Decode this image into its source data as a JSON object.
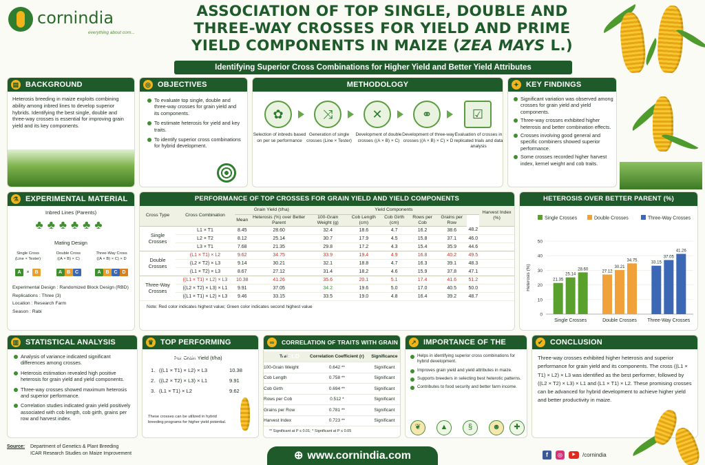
{
  "brand": {
    "name": "cornindia",
    "tagline": "everything about corn..."
  },
  "title": {
    "line1": "ASSOCIATION OF TOP SINGLE, DOUBLE AND",
    "line2": "THREE-WAY CROSSES FOR YIELD AND PRIME",
    "line3a": "YIELD COMPONENTS IN MAIZE (",
    "line3i": "ZEA MAYS",
    "line3b": " L.)"
  },
  "subtitle": "Identifying Superior Cross Combinations for Higher Yield and Better Yield Attributes",
  "background": {
    "heading": "BACKGROUND",
    "text": "Heterosis breeding in maize exploits combining ability among inbred lines to develop superior hybrids. Identifying the best single, double and three-way crosses is essential for improving grain yield and its key components."
  },
  "objectives": {
    "heading": "OBJECTIVES",
    "items": [
      "To evaluate top single, double and three-way crosses for grain yield and its components.",
      "To estimate heterosis for yield and key traits.",
      "To identify superior cross combinations for hybrid development."
    ]
  },
  "methodology": {
    "heading": "METHODOLOGY",
    "steps": [
      "Selection of inbreds based on per se performance",
      "Generation of single crosses (Line × Tester)",
      "Development of double crosses ((A × B) × C)",
      "Development of three-way crosses ((A × B) × C) × D",
      "Evaluation of crosses in replicated trials and data analysis"
    ]
  },
  "key_findings": {
    "heading": "KEY FINDINGS",
    "items": [
      "Significant variation was observed among crosses for grain yield and yield components.",
      "Three-way crosses exhibited higher heterosis and better combination effects.",
      "Crosses involving good general and specific combiners showed superior performance.",
      "Some crosses recorded higher harvest index, kernel weight and cob traits."
    ]
  },
  "material": {
    "heading": "EXPERIMENTAL MATERIAL",
    "inbred_label": "Inbred Lines (Parents)",
    "mating_label": "Mating Design",
    "single": "Single Cross\n(Line × Tester)",
    "double": "Double Cross\n((A × B) × C)",
    "three": "Three-Way Cross\n((A × B) × C) × D",
    "times": "×",
    "details": [
      "Experimental Design : Randomized Block Design (RBD)",
      "Replications : Three (3)",
      "Location : Research Farm",
      "Season : Rabi"
    ]
  },
  "performance": {
    "heading": "PERFORMANCE OF TOP CROSSES FOR GRAIN YIELD AND YIELD COMPONENTS",
    "h_type": "Cross Type",
    "h_comb": "Cross Combination",
    "h_grain": "Grain Yield (t/ha)",
    "h_mean": "Mean",
    "h_het": "Heterosis (%) over Better Parent",
    "h_comp": "Yield Components",
    "h_kw": "100-Grain Weight (g)",
    "h_cl": "Cob Length (cm)",
    "h_cg": "Cob Girth (cm)",
    "h_rows": "Rows per Cob",
    "h_gpr": "Grains per Row",
    "h_hi": "Harvest Index (%)",
    "groups": [
      "Single Crosses",
      "Double Crosses",
      "Three-Way Crosses"
    ],
    "rows": [
      [
        "L1 × T1",
        "8.45",
        "28.60",
        "32.4",
        "18.6",
        "4.7",
        "16.2",
        "38.6",
        "48.2"
      ],
      [
        "L2 × T2",
        "8.12",
        "25.14",
        "30.7",
        "17.9",
        "4.5",
        "15.8",
        "37.1",
        "46.0"
      ],
      [
        "L3 × T1",
        "7.68",
        "21.35",
        "29.8",
        "17.2",
        "4.3",
        "15.4",
        "35.9",
        "44.6"
      ],
      [
        "(L1 × T1) × L2",
        "9.62",
        "34.75",
        "33.9",
        "19.4",
        "4.9",
        "16.8",
        "40.2",
        "49.5"
      ],
      [
        "(L2 × T2) × L3",
        "9.14",
        "30.21",
        "32.1",
        "18.8",
        "4.7",
        "16.3",
        "39.1",
        "48.3"
      ],
      [
        "(L1 × T2) × L3",
        "8.67",
        "27.12",
        "31.4",
        "18.2",
        "4.6",
        "15.9",
        "37.8",
        "47.1"
      ],
      [
        "((L1 × T1) × L2) × L3",
        "10.38",
        "41.26",
        "35.6",
        "20.1",
        "5.1",
        "17.4",
        "41.6",
        "51.2"
      ],
      [
        "((L2 × T2) × L3) × L1",
        "9.91",
        "37.05",
        "34.2",
        "19.6",
        "5.0",
        "17.0",
        "40.5",
        "50.0"
      ],
      [
        "((L1 × T1) × L2) × L3",
        "9.46",
        "33.15",
        "33.5",
        "19.0",
        "4.8",
        "16.4",
        "39.2",
        "48.7"
      ]
    ],
    "note": "Note: Red color indicates highest value; Green color indicates second highest value"
  },
  "chart": {
    "heading": "HETEROSIS OVER BETTER PARENT (%)"
  },
  "chart_data": {
    "type": "bar",
    "categories": [
      "Single Crosses",
      "Double Crosses",
      "Three-Way Crosses"
    ],
    "series": [
      {
        "name": "Single Crosses",
        "color": "#5aa02c",
        "values": [
          21.35,
          25.14,
          28.6
        ]
      },
      {
        "name": "Double Crosses",
        "color": "#f0a13a",
        "values": [
          27.12,
          30.21,
          34.75
        ]
      },
      {
        "name": "Three-Way Crosses",
        "color": "#3b67b5",
        "values": [
          33.15,
          37.05,
          41.26
        ]
      }
    ],
    "ylabel": "Heterosis (%)",
    "ylim": [
      0,
      50
    ],
    "yticks": [
      "0",
      "10",
      "20",
      "30",
      "40",
      "50"
    ],
    "legend": "top"
  },
  "statistical": {
    "heading": "STATISTICAL ANALYSIS",
    "items": [
      "Analysis of variance indicated significant differences among crosses.",
      "Heterosis estimation revealed high positive heterosis for grain yield and yield components.",
      "Three-way crosses showed maximum heterosis and superior performance.",
      "Correlation studies indicated grain yield positively associated with cob length, cob girth, grains per row and harvest index."
    ]
  },
  "top": {
    "heading": "TOP PERFORMING CROSSES",
    "label": "For Grain Yield (t/ha)",
    "items": [
      {
        "n": "1.",
        "cross": "((L1 × T1) × L2) × L3",
        "val": "10.38"
      },
      {
        "n": "2.",
        "cross": "((L2 × T2) × L3) × L1",
        "val": "9.91"
      },
      {
        "n": "3.",
        "cross": "(L1 × T1) × L2",
        "val": "9.62"
      }
    ],
    "note": "These crosses can be utilized in hybrid breeding programs for higher yield potential."
  },
  "correlation": {
    "heading": "CORRELATION OF TRAITS WITH GRAIN YIELD",
    "h_trait": "Trait",
    "h_coef": "Correlation Coefficient (r)",
    "h_sig": "Significance",
    "rows": [
      [
        "100-Grain Weight",
        "0.642 **",
        "Significant"
      ],
      [
        "Cob Length",
        "0.758 **",
        "Significant"
      ],
      [
        "Cob Girth",
        "0.694 **",
        "Significant"
      ],
      [
        "Rows per Cob",
        "0.512 *",
        "Significant"
      ],
      [
        "Grains per Row",
        "0.781 **",
        "Significant"
      ],
      [
        "Harvest Index",
        "0.723 **",
        "Significant"
      ]
    ],
    "note": "** Significant at P ≤ 0.01; * Significant at P ≤ 0.05"
  },
  "importance": {
    "heading": "IMPORTANCE OF THE STUDY",
    "items": [
      "Helps in identifying superior cross combinations for hybrid development.",
      "Improves grain yield and yield attributes in maize.",
      "Supports breeders in selecting best heterotic patterns.",
      "Contributes to food security and better farm income."
    ]
  },
  "conclusion": {
    "heading": "CONCLUSION",
    "text": "Three-way crosses exhibited higher heterosis and superior performance for grain yield and its components. The cross ((L1 × T1) × L2) × L3 was identified as the best performer, followed by ((L2 × T2) × L3) × L1 and (L1 × T1) × L2. These promising crosses can be advanced for hybrid development to achieve higher yield and better productivity in maize."
  },
  "footer": {
    "source_label": "Source:",
    "source_line1": "Department of Genetics & Plant Breeding",
    "source_line2": "ICAR Research Studies on Maize Improvement",
    "url": "www.cornindia.com",
    "social": "/cornindia"
  }
}
